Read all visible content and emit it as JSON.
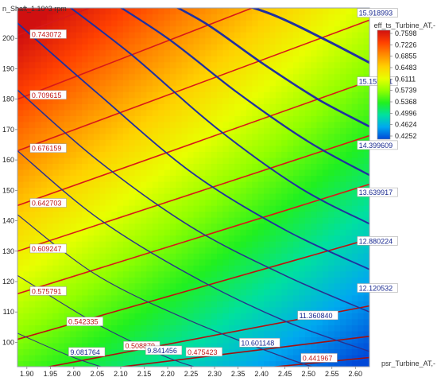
{
  "chart_data": {
    "type": "heatmap",
    "title": "",
    "xlabel": "psr_Turbine_AT,-",
    "ylabel": "n_Shaft_1.10^3 rpm",
    "xlim": [
      1.88,
      2.63
    ],
    "ylim": [
      92,
      210
    ],
    "xticks": [
      "1.90",
      "1.95",
      "2.00",
      "2.05",
      "2.10",
      "2.15",
      "2.20",
      "2.25",
      "2.30",
      "2.35",
      "2.40",
      "2.45",
      "2.50",
      "2.55",
      "2.60"
    ],
    "yticks": [
      "100",
      "110",
      "120",
      "130",
      "140",
      "150",
      "160",
      "170",
      "180",
      "190",
      "200"
    ],
    "colorbar": {
      "title": "eff_ts_Turbine_AT,-",
      "min": 0.4252,
      "max": 0.7598,
      "ticks": [
        "0.7598",
        "0.7226",
        "0.6855",
        "0.6483",
        "0.6111",
        "0.5739",
        "0.5368",
        "0.4996",
        "0.4624",
        "0.4252"
      ],
      "colors": [
        "#d01010",
        "#ff4000",
        "#ff8a00",
        "#ffd000",
        "#e8ff00",
        "#90ff00",
        "#20f020",
        "#00e0a0",
        "#00a8f0",
        "#0048d8"
      ]
    },
    "efficiency_field": {
      "peak_psr": 1.88,
      "peak_n": 210,
      "peak_eff": 0.7598,
      "min_psr": 2.55,
      "min_n": 92,
      "min_eff": 0.4252
    },
    "efficiency_contours": [
      {
        "label": "0.743072",
        "color": "#d81818",
        "points": [
          [
            1.88,
            201
          ],
          [
            2.63,
            245
          ]
        ]
      },
      {
        "label": "0.709615",
        "color": "#d81818",
        "points": [
          [
            1.88,
            180
          ],
          [
            2.63,
            225
          ]
        ]
      },
      {
        "label": "0.676159",
        "color": "#d81818",
        "points": [
          [
            1.88,
            163
          ],
          [
            2.63,
            206
          ]
        ]
      },
      {
        "label": "0.642703",
        "color": "#d81818",
        "points": [
          [
            1.88,
            145
          ],
          [
            2.63,
            186
          ]
        ]
      },
      {
        "label": "0.609247",
        "color": "#d81818",
        "points": [
          [
            1.88,
            130
          ],
          [
            2.63,
            168
          ]
        ]
      },
      {
        "label": "0.575791",
        "color": "#d81818",
        "points": [
          [
            1.88,
            116
          ],
          [
            2.63,
            152
          ]
        ]
      },
      {
        "label": "0.542335",
        "color": "#c01010",
        "points": [
          [
            1.88,
            101
          ],
          [
            2.63,
            134
          ]
        ]
      },
      {
        "label": "0.508879",
        "color": "#b01010",
        "points": [
          [
            1.88,
            90
          ],
          [
            2.63,
            112
          ]
        ]
      },
      {
        "label": "0.475423",
        "color": "#a01010",
        "points": [
          [
            2.0,
            90
          ],
          [
            2.63,
            102
          ]
        ]
      },
      {
        "label": "0.441967",
        "color": "#a01010",
        "points": [
          [
            2.3,
            90
          ],
          [
            2.63,
            95
          ]
        ]
      }
    ],
    "power_contours": [
      {
        "label": "15.918993",
        "color": "#2030a0",
        "weight": 3.0,
        "points": [
          [
            2.28,
            215
          ],
          [
            2.42,
            208
          ],
          [
            2.53,
            200
          ],
          [
            2.63,
            192
          ]
        ]
      },
      {
        "label": "15.159301",
        "color": "#2030a0",
        "weight": 2.6,
        "points": [
          [
            2.16,
            215
          ],
          [
            2.28,
            205
          ],
          [
            2.4,
            192
          ],
          [
            2.52,
            180
          ],
          [
            2.63,
            171
          ]
        ]
      },
      {
        "label": "14.399609",
        "color": "#2030a0",
        "weight": 2.3,
        "points": [
          [
            2.05,
            215
          ],
          [
            2.2,
            200
          ],
          [
            2.35,
            182
          ],
          [
            2.5,
            166
          ],
          [
            2.63,
            155
          ]
        ]
      },
      {
        "label": "13.639917",
        "color": "#2030a0",
        "weight": 2.0,
        "points": [
          [
            1.95,
            215
          ],
          [
            2.12,
            195
          ],
          [
            2.3,
            171
          ],
          [
            2.48,
            151
          ],
          [
            2.63,
            139
          ]
        ]
      },
      {
        "label": "12.880224",
        "color": "#2030a0",
        "weight": 1.8,
        "points": [
          [
            1.88,
            205
          ],
          [
            2.05,
            182
          ],
          [
            2.25,
            156
          ],
          [
            2.45,
            137
          ],
          [
            2.63,
            124
          ]
        ]
      },
      {
        "label": "12.120532",
        "color": "#283090",
        "weight": 1.6,
        "points": [
          [
            1.88,
            183
          ],
          [
            2.05,
            160
          ],
          [
            2.25,
            138
          ],
          [
            2.45,
            122
          ],
          [
            2.63,
            110
          ]
        ]
      },
      {
        "label": "11.360840",
        "color": "#283090",
        "weight": 1.4,
        "points": [
          [
            1.88,
            163
          ],
          [
            2.05,
            141
          ],
          [
            2.25,
            122
          ],
          [
            2.45,
            107
          ],
          [
            2.63,
            97
          ]
        ]
      },
      {
        "label": "10.601148",
        "color": "#303080",
        "weight": 1.2,
        "points": [
          [
            1.88,
            142
          ],
          [
            2.05,
            122
          ],
          [
            2.25,
            107
          ],
          [
            2.45,
            95
          ],
          [
            2.55,
            90
          ]
        ]
      },
      {
        "label": "9.841456",
        "color": "#303080",
        "weight": 1.1,
        "points": [
          [
            1.88,
            122
          ],
          [
            2.05,
            106
          ],
          [
            2.2,
            95
          ],
          [
            2.3,
            90
          ]
        ]
      },
      {
        "label": "9.081764",
        "color": "#303080",
        "weight": 1.0,
        "points": [
          [
            1.88,
            103
          ],
          [
            2.0,
            95
          ],
          [
            2.1,
            90
          ]
        ]
      }
    ],
    "efficiency_labels": [
      {
        "text": "0.743072",
        "x": 1.907,
        "y": 201
      },
      {
        "text": "0.709615",
        "x": 1.907,
        "y": 181
      },
      {
        "text": "0.676159",
        "x": 1.907,
        "y": 163.5
      },
      {
        "text": "0.642703",
        "x": 1.907,
        "y": 145.5
      },
      {
        "text": "0.609247",
        "x": 1.907,
        "y": 130.5
      },
      {
        "text": "0.575791",
        "x": 1.907,
        "y": 116.5
      },
      {
        "text": "0.542335",
        "x": 1.985,
        "y": 106.5
      },
      {
        "text": "0.508879",
        "x": 2.106,
        "y": 98.5
      },
      {
        "text": "0.475423",
        "x": 2.239,
        "y": 96.5
      },
      {
        "text": "0.441967",
        "x": 2.484,
        "y": 94.5
      }
    ],
    "power_labels": [
      {
        "text": "15.918993",
        "x": 2.604,
        "y": 208
      },
      {
        "text": "15.159301",
        "x": 2.604,
        "y": 185.5
      },
      {
        "text": "14.399609",
        "x": 2.604,
        "y": 164.5
      },
      {
        "text": "13.639917",
        "x": 2.604,
        "y": 149
      },
      {
        "text": "12.880224",
        "x": 2.604,
        "y": 133
      },
      {
        "text": "12.120532",
        "x": 2.604,
        "y": 117.5
      },
      {
        "text": "11.360840",
        "x": 2.477,
        "y": 108.5
      },
      {
        "text": "10.601148",
        "x": 2.353,
        "y": 99.5
      },
      {
        "text": "9.841456",
        "x": 2.153,
        "y": 97
      },
      {
        "text": "9.081764",
        "x": 1.989,
        "y": 96.5
      }
    ]
  }
}
